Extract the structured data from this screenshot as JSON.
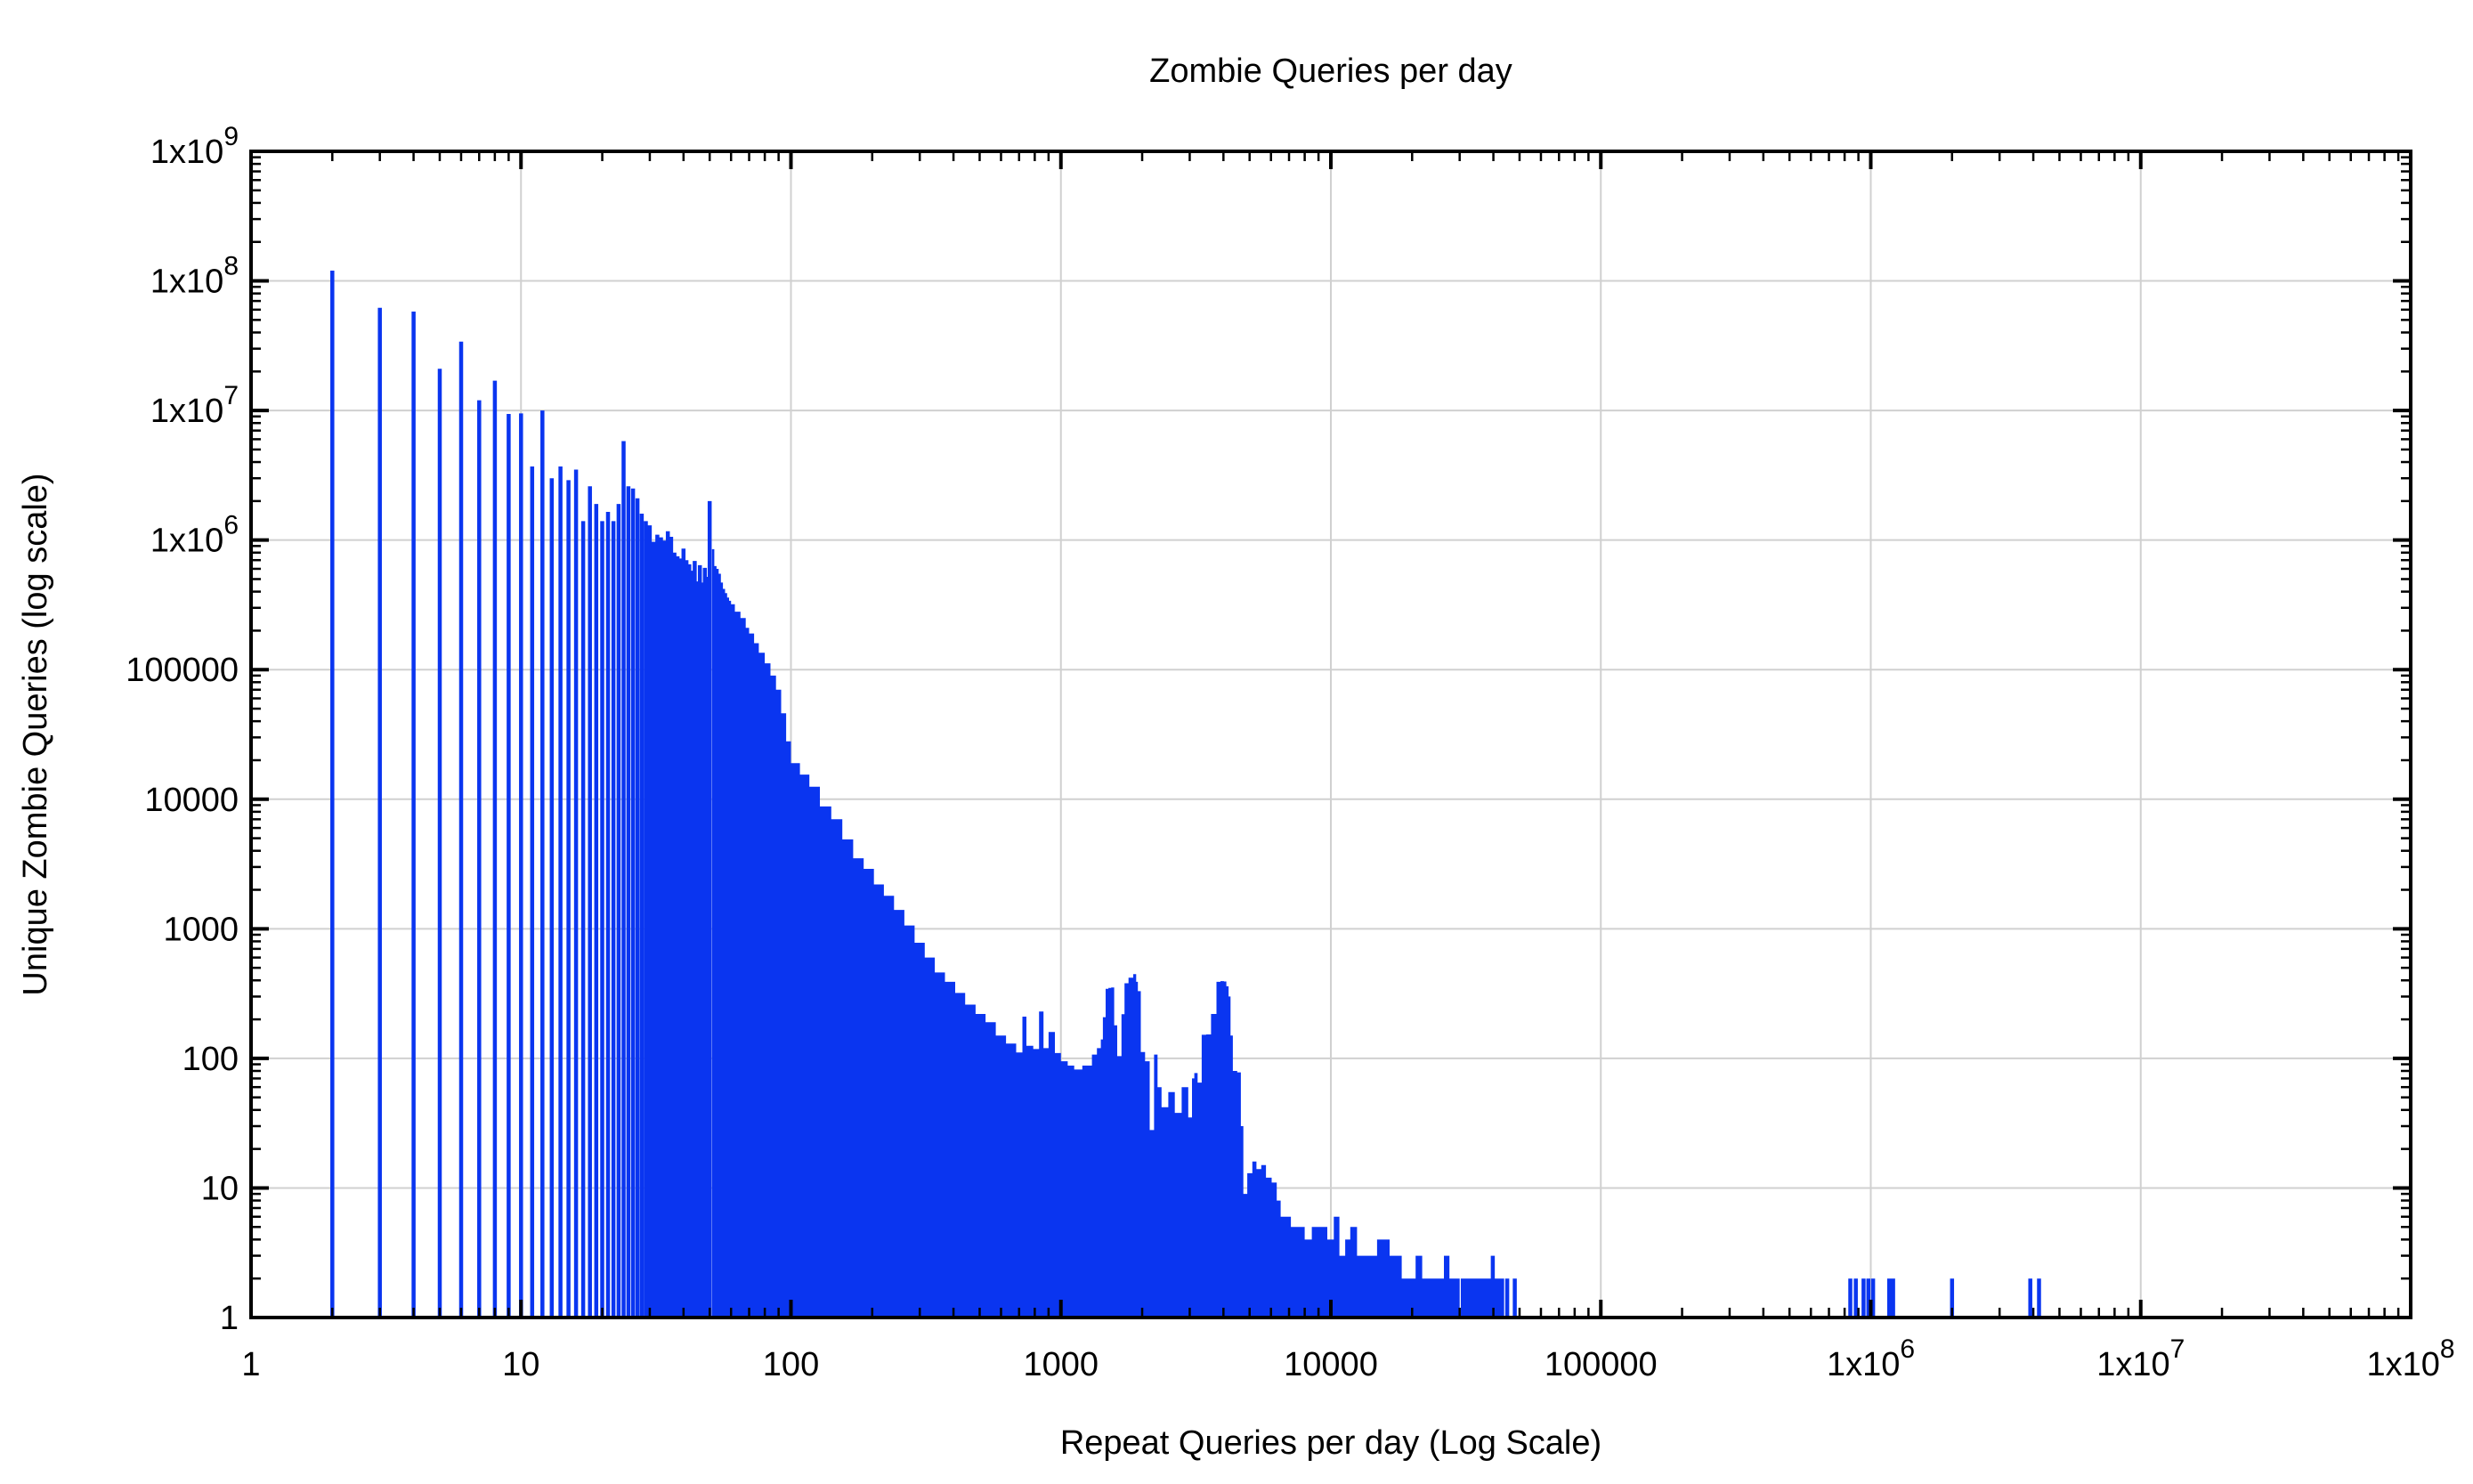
{
  "chart_data": {
    "type": "bar",
    "subtype": "log-log-impulses",
    "title": "Zombie Queries per day",
    "xlabel": "Repeat Queries per day (Log Scale)",
    "ylabel": "Unique Zombie Queries (log scale)",
    "xscale": "log",
    "yscale": "log",
    "xlim": [
      1,
      100000000
    ],
    "ylim": [
      1,
      1000000000
    ],
    "grid": true,
    "legend": "none",
    "colors": {
      "bar": "#0a35f0",
      "grid": "#d0d0d0",
      "frame": "#000000",
      "background": "#ffffff"
    },
    "x_ticks": [
      {
        "v": 1,
        "label": "1"
      },
      {
        "v": 10,
        "label": "10"
      },
      {
        "v": 100,
        "label": "100"
      },
      {
        "v": 1000,
        "label": "1000"
      },
      {
        "v": 10000,
        "label": "10000"
      },
      {
        "v": 100000,
        "label": "100000"
      },
      {
        "v": 1000000,
        "label": "1x10^6"
      },
      {
        "v": 10000000,
        "label": "1x10^7"
      },
      {
        "v": 100000000,
        "label": "1x10^8"
      }
    ],
    "y_ticks": [
      {
        "v": 1,
        "label": "1"
      },
      {
        "v": 10,
        "label": "10"
      },
      {
        "v": 100,
        "label": "100"
      },
      {
        "v": 1000,
        "label": "1000"
      },
      {
        "v": 10000,
        "label": "10000"
      },
      {
        "v": 100000,
        "label": "100000"
      },
      {
        "v": 1000000,
        "label": "1x10^6"
      },
      {
        "v": 10000000,
        "label": "1x10^7"
      },
      {
        "v": 100000000,
        "label": "1x10^8"
      },
      {
        "v": 1000000000,
        "label": "1x10^9"
      }
    ],
    "series": {
      "impulses": [
        [
          2,
          120000000.0
        ],
        [
          3,
          62000000.0
        ],
        [
          4,
          58000000.0
        ],
        [
          5,
          21000000.0
        ],
        [
          6,
          34000000.0
        ],
        [
          7,
          12000000.0
        ],
        [
          8,
          17000000.0
        ],
        [
          9,
          9400000.0
        ],
        [
          10,
          9500000.0
        ],
        [
          11,
          3700000.0
        ],
        [
          12,
          10000000.0
        ],
        [
          13,
          3000000.0
        ],
        [
          14,
          3700000.0
        ],
        [
          15,
          2900000.0
        ],
        [
          16,
          3500000.0
        ],
        [
          17,
          1400000.0
        ],
        [
          18,
          2600000.0
        ],
        [
          19,
          1900000.0
        ],
        [
          20,
          1400000.0
        ],
        [
          21,
          1650000.0
        ],
        [
          22,
          1400000.0
        ],
        [
          23,
          1900000.0
        ],
        [
          24,
          5800000.0
        ],
        [
          25,
          2600000.0
        ],
        [
          26,
          2500000.0
        ],
        [
          27,
          2100000.0
        ],
        [
          28,
          1600000.0
        ],
        [
          29,
          1400000.0
        ],
        [
          30,
          1300000.0
        ],
        [
          31,
          970000.0
        ],
        [
          32,
          1100000.0
        ],
        [
          33,
          1050000.0
        ],
        [
          34,
          990000.0
        ],
        [
          35,
          1170000.0
        ],
        [
          36,
          1060000.0
        ],
        [
          37,
          800000.0
        ],
        [
          38,
          750000.0
        ],
        [
          39,
          720000.0
        ],
        [
          40,
          860000.0
        ],
        [
          41,
          700000.0
        ],
        [
          42,
          650000.0
        ],
        [
          43,
          580000.0
        ],
        [
          44,
          690000.0
        ],
        [
          45,
          480000.0
        ],
        [
          46,
          640000.0
        ],
        [
          47,
          470000.0
        ],
        [
          48,
          610000.0
        ],
        [
          49,
          520000.0
        ],
        [
          50,
          2000000.0
        ]
      ],
      "dense_region_envelope": [
        [
          51,
          850000.0
        ],
        [
          52,
          630000.0
        ],
        [
          53,
          600000.0
        ],
        [
          54,
          550000.0
        ],
        [
          55,
          470000.0
        ],
        [
          56,
          420000.0
        ],
        [
          57,
          390000.0
        ],
        [
          58,
          360000.0
        ],
        [
          59,
          340000.0
        ],
        [
          60,
          320000.0
        ],
        [
          62,
          280000.0
        ],
        [
          65,
          250000.0
        ],
        [
          68,
          210000.0
        ],
        [
          70,
          190000.0
        ],
        [
          73,
          160000.0
        ],
        [
          76,
          135000.0
        ],
        [
          80,
          112000.0
        ],
        [
          84,
          90000.0
        ],
        [
          88,
          70000.0
        ],
        [
          92,
          46000.0
        ],
        [
          96,
          28000.0
        ],
        [
          100,
          19000.0
        ],
        [
          108,
          15500.0
        ],
        [
          117,
          12500.0
        ],
        [
          128,
          8800
        ],
        [
          141,
          7000
        ],
        [
          155,
          4900
        ],
        [
          170,
          3500
        ],
        [
          186,
          2900
        ],
        [
          203,
          2200
        ],
        [
          221,
          1800
        ],
        [
          241,
          1400
        ],
        [
          263,
          1060
        ],
        [
          287,
          780
        ],
        [
          313,
          600
        ],
        [
          341,
          460
        ],
        [
          372,
          390
        ],
        [
          406,
          320
        ],
        [
          442,
          260
        ],
        [
          483,
          220
        ],
        [
          526,
          190
        ],
        [
          574,
          150
        ],
        [
          626,
          130
        ],
        [
          683,
          111
        ],
        [
          720,
          210
        ],
        [
          745,
          125
        ],
        [
          790,
          118
        ],
        [
          830,
          230
        ],
        [
          862,
          120
        ],
        [
          900,
          160
        ],
        [
          950,
          110
        ],
        [
          1000,
          95
        ],
        [
          1060,
          88
        ],
        [
          1120,
          82
        ],
        [
          1200,
          88
        ],
        [
          1303,
          107
        ],
        [
          1360,
          120
        ],
        [
          1406,
          140
        ],
        [
          1430,
          208
        ],
        [
          1465,
          344
        ],
        [
          1500,
          350
        ],
        [
          1535,
          352
        ],
        [
          1575,
          180
        ],
        [
          1616,
          104
        ],
        [
          1676,
          219
        ],
        [
          1720,
          380
        ],
        [
          1780,
          420
        ],
        [
          1853,
          447
        ],
        [
          1900,
          390
        ],
        [
          1928,
          330
        ],
        [
          1977,
          112
        ],
        [
          2050,
          95
        ],
        [
          2132,
          28
        ],
        [
          2213,
          107
        ],
        [
          2280,
          60
        ],
        [
          2360,
          42
        ],
        [
          2500,
          55
        ],
        [
          2642,
          38
        ],
        [
          2800,
          60
        ],
        [
          2963,
          35
        ],
        [
          3060,
          70
        ],
        [
          3119,
          77
        ],
        [
          3210,
          65
        ],
        [
          3324,
          152
        ],
        [
          3451,
          153
        ],
        [
          3600,
          220
        ],
        [
          3770,
          390
        ],
        [
          3900,
          395
        ],
        [
          4018,
          392
        ],
        [
          4100,
          360
        ],
        [
          4178,
          300
        ],
        [
          4250,
          150
        ],
        [
          4334,
          80
        ],
        [
          4500,
          78
        ],
        [
          4640,
          30
        ],
        [
          4742,
          9
        ],
        [
          4900,
          13
        ],
        [
          5117,
          16
        ],
        [
          5300,
          14
        ],
        [
          5521,
          15
        ],
        [
          5750,
          12
        ],
        [
          6036,
          11
        ],
        [
          6300,
          8
        ],
        [
          6516,
          6
        ],
        [
          6800,
          6
        ],
        [
          7110,
          5
        ],
        [
          7500,
          5
        ],
        [
          8000,
          4
        ],
        [
          8500,
          5
        ],
        [
          9184,
          5
        ],
        [
          9700,
          4
        ],
        [
          10250,
          6
        ],
        [
          10760,
          3
        ],
        [
          11300,
          4
        ],
        [
          11800,
          5
        ],
        [
          12500,
          3
        ],
        [
          13430,
          3
        ],
        [
          14200,
          3
        ],
        [
          14830,
          4
        ],
        [
          15640,
          4
        ],
        [
          16500,
          3
        ],
        [
          17400,
          3
        ],
        [
          18300,
          2
        ],
        [
          19500,
          2
        ],
        [
          20600,
          3
        ],
        [
          21800,
          2
        ],
        [
          23000,
          2
        ],
        [
          24500,
          2
        ],
        [
          26230,
          3
        ],
        [
          27500,
          2
        ],
        [
          29000,
          2
        ],
        [
          30000,
          2
        ]
      ],
      "sparse_impulses": [
        [
          30800,
          2
        ],
        [
          31600,
          2
        ],
        [
          32500,
          2
        ],
        [
          33400,
          2
        ],
        [
          34300,
          2
        ],
        [
          35300,
          2
        ],
        [
          36300,
          2
        ],
        [
          37400,
          2
        ],
        [
          38500,
          2
        ],
        [
          39800,
          3
        ],
        [
          40900,
          2
        ],
        [
          42000,
          2
        ],
        [
          43100,
          2
        ],
        [
          45000,
          2
        ],
        [
          48000,
          2
        ],
        [
          840000,
          2
        ],
        [
          880000,
          2
        ],
        [
          940000,
          2
        ],
        [
          980000,
          2
        ],
        [
          1020000,
          2
        ],
        [
          1170000,
          2
        ],
        [
          1210000,
          2
        ],
        [
          2000000,
          2
        ],
        [
          3900000,
          2
        ],
        [
          4200000,
          2
        ]
      ]
    }
  }
}
